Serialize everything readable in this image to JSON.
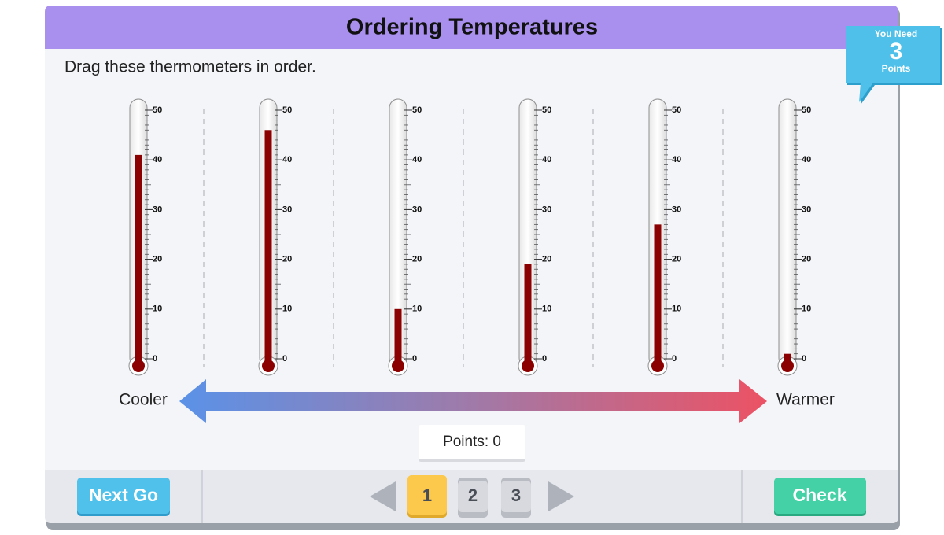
{
  "header": {
    "title": "Ordering Temperatures"
  },
  "instruction": "Drag these thermometers in order.",
  "badge": {
    "top": "You Need",
    "number": "3",
    "bottom": "Points"
  },
  "thermometers": {
    "range": [
      0,
      50
    ],
    "ticks": [
      0,
      10,
      20,
      30,
      40,
      50
    ],
    "values": [
      41,
      46,
      10,
      19,
      27,
      1
    ]
  },
  "scale_arrow": {
    "left": "Cooler",
    "right": "Warmer"
  },
  "points_label": "Points: 0",
  "footer": {
    "next_button": "Next Go",
    "pages": [
      "1",
      "2",
      "3"
    ],
    "check_button": "Check"
  }
}
